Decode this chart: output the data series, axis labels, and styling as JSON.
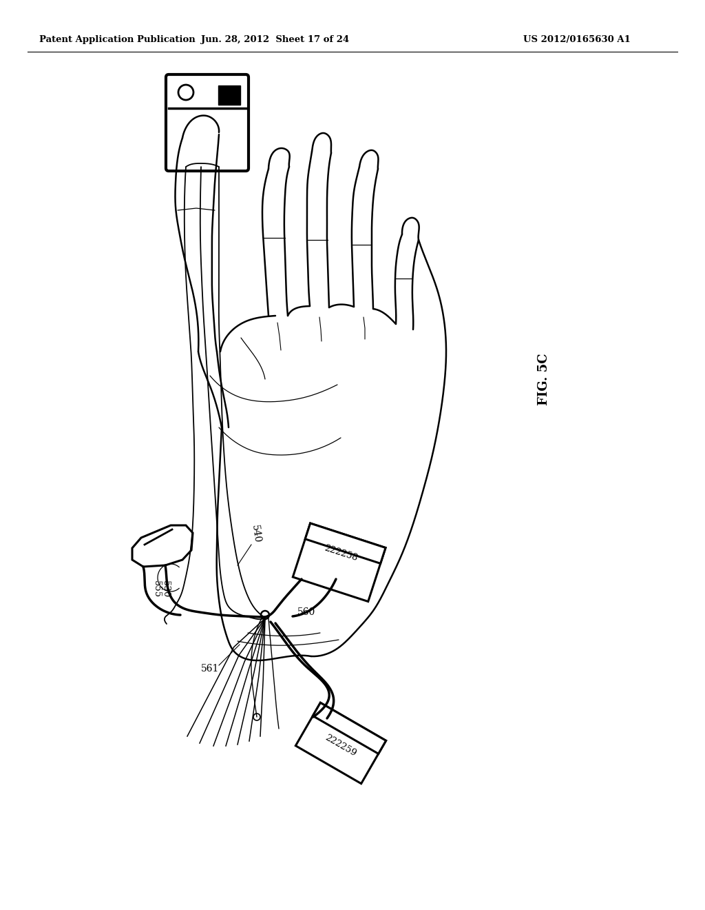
{
  "bg_color": "#ffffff",
  "header_left": "Patent Application Publication",
  "header_mid": "Jun. 28, 2012  Sheet 17 of 24",
  "header_right": "US 2012/0165630 A1",
  "fig_label": "FIG. 5C",
  "label_540": "540",
  "label_555": "555",
  "label_530": "530",
  "label_560": "560",
  "label_561": "561",
  "label_222258": "222258",
  "label_222259": "222259"
}
